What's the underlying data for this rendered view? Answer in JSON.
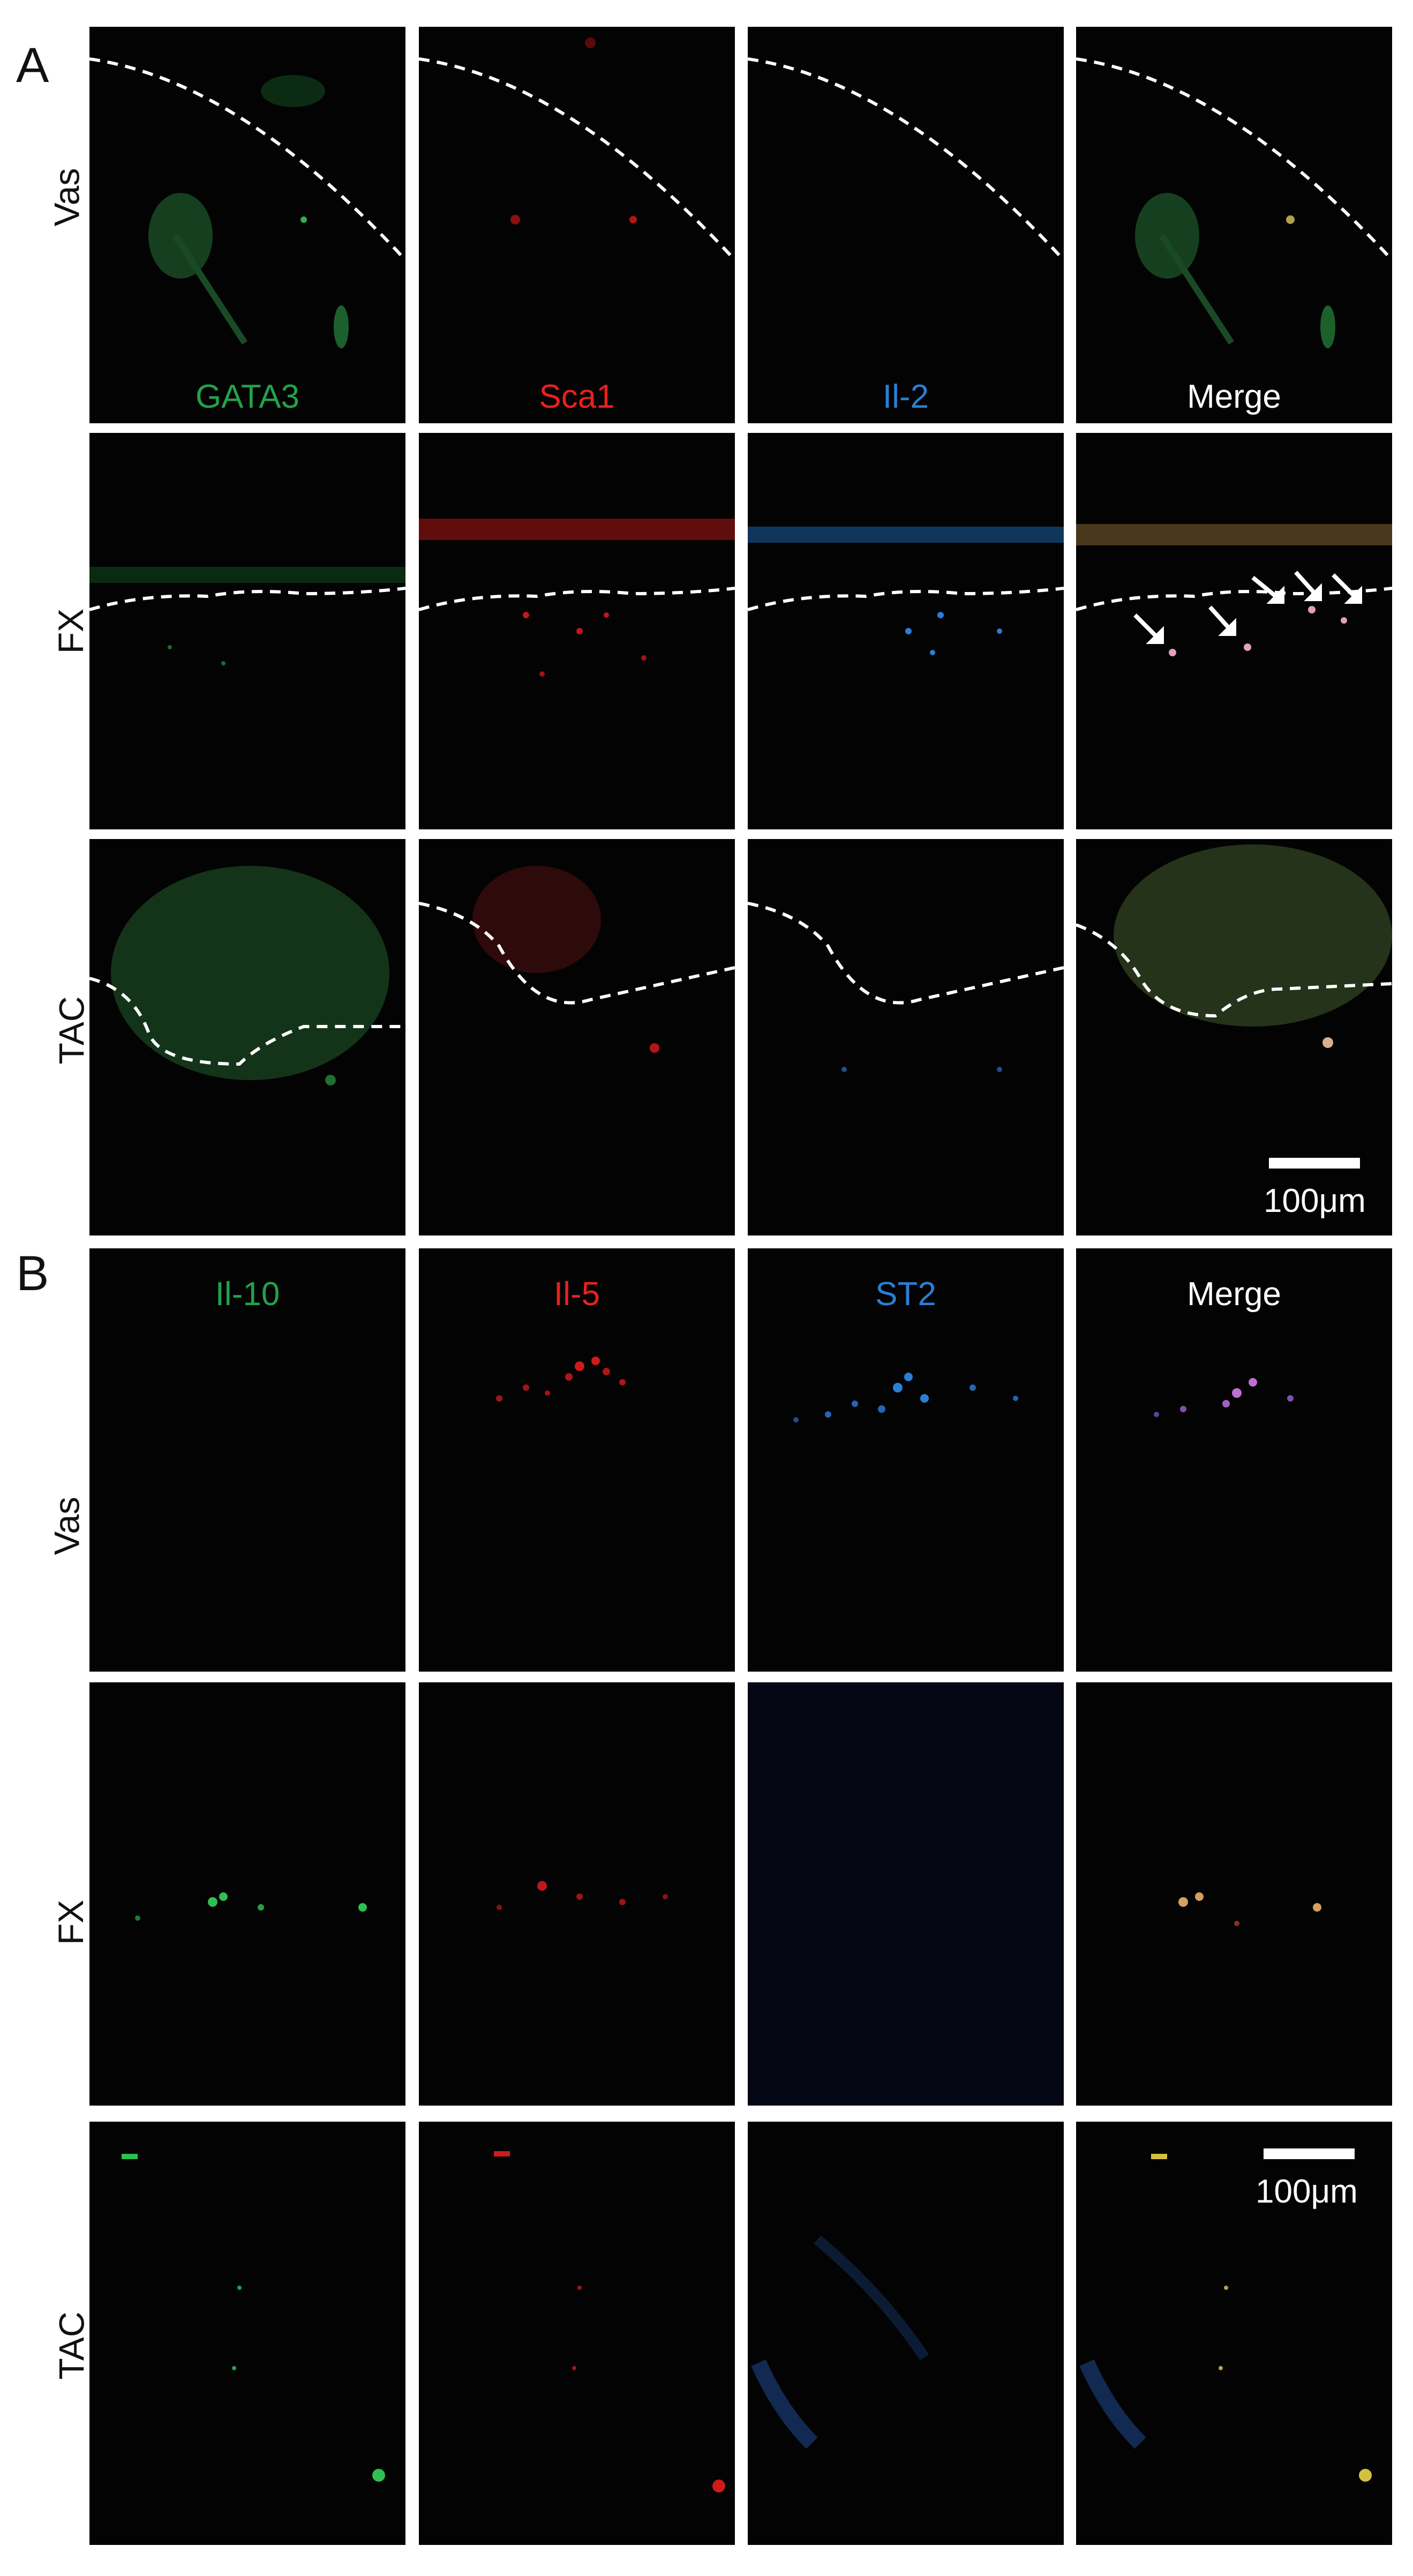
{
  "panels": [
    {
      "letter": "A",
      "channels": [
        "GATA3",
        "Sca1",
        "Il-2",
        "Merge"
      ],
      "rows": [
        "Vas",
        "FX",
        "TAC"
      ],
      "scale_bar": "100μm"
    },
    {
      "letter": "B",
      "channels": [
        "Il-10",
        "Il-5",
        "ST2",
        "Merge"
      ],
      "rows": [
        "Vas",
        "FX",
        "TAC"
      ],
      "scale_bar": "100μm"
    }
  ],
  "colors": {
    "green": "#22a24a",
    "red": "#e8211d",
    "blue": "#2a7fd4",
    "white": "#ffffff"
  }
}
